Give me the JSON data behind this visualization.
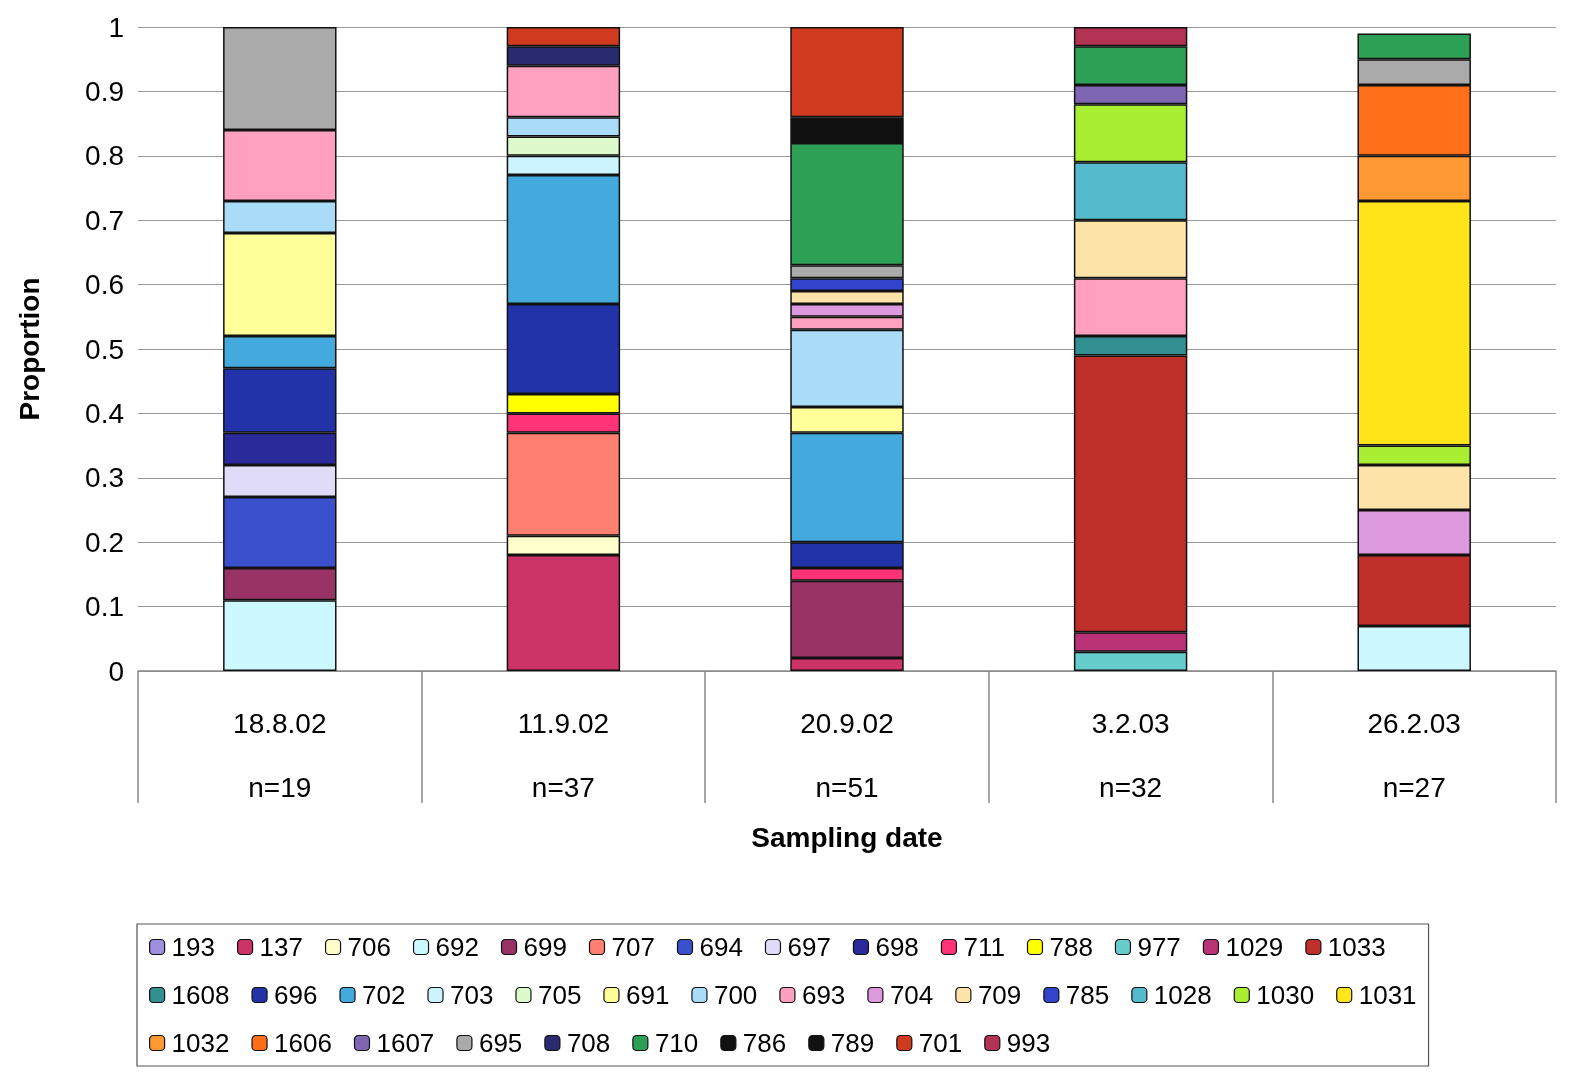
{
  "chart_data": {
    "type": "bar",
    "stacked": true,
    "xlabel": "Sampling date",
    "ylabel": "Proportion",
    "categories": [
      "18.8.02\nn=19",
      "11.9.02\nn=37",
      "20.9.02\nn=51",
      "3.2.03\nn=32",
      "26.2.03\nn=27"
    ],
    "ylim": [
      0,
      1
    ],
    "yticks": [
      0,
      0.1,
      0.2,
      0.3,
      0.4,
      0.5,
      0.6,
      0.7,
      0.8,
      0.9,
      1
    ],
    "grid": "y",
    "legend": "bottom",
    "series": [
      {
        "name": "193",
        "color": "#9f8fdf",
        "values": [
          null,
          null,
          null,
          null,
          null
        ]
      },
      {
        "name": "137",
        "color": "#cc3366",
        "values": [
          null,
          0.18,
          0.02,
          null,
          null
        ]
      },
      {
        "name": "706",
        "color": "#ffffcc",
        "values": [
          null,
          0.03,
          null,
          null,
          null
        ]
      },
      {
        "name": "692",
        "color": "#ccf8ff",
        "values": [
          0.11,
          null,
          null,
          null,
          0.07
        ]
      },
      {
        "name": "699",
        "color": "#993366",
        "values": [
          0.05,
          null,
          0.12,
          null,
          null
        ]
      },
      {
        "name": "707",
        "color": "#ff8070",
        "values": [
          null,
          0.16,
          null,
          null,
          null
        ]
      },
      {
        "name": "694",
        "color": "#3a50cc",
        "values": [
          0.11,
          null,
          null,
          null,
          null
        ]
      },
      {
        "name": "697",
        "color": "#e0dcf8",
        "values": [
          0.05,
          null,
          null,
          null,
          null
        ]
      },
      {
        "name": "698",
        "color": "#2a2a9a",
        "values": [
          0.05,
          null,
          null,
          null,
          null
        ]
      },
      {
        "name": "711",
        "color": "#ff3377",
        "values": [
          null,
          0.03,
          0.02,
          null,
          null
        ]
      },
      {
        "name": "788",
        "color": "#ffff00",
        "values": [
          null,
          0.03,
          null,
          null,
          null
        ]
      },
      {
        "name": "977",
        "color": "#66cccc",
        "values": [
          null,
          null,
          null,
          0.03,
          null
        ]
      },
      {
        "name": "1029",
        "color": "#bb3377",
        "values": [
          null,
          null,
          null,
          0.03,
          null
        ]
      },
      {
        "name": "1033",
        "color": "#c0302a",
        "values": [
          null,
          null,
          null,
          0.43,
          0.11
        ]
      },
      {
        "name": "1608",
        "color": "#339090",
        "values": [
          null,
          null,
          null,
          0.03,
          null
        ]
      },
      {
        "name": "696",
        "color": "#2233aa",
        "values": [
          0.1,
          0.14,
          0.04,
          null,
          null
        ]
      },
      {
        "name": "702",
        "color": "#44aadd",
        "values": [
          0.05,
          0.2,
          0.17,
          null,
          null
        ]
      },
      {
        "name": "703",
        "color": "#ccf4ff",
        "values": [
          null,
          0.03,
          null,
          null,
          null
        ]
      },
      {
        "name": "705",
        "color": "#ddfacc",
        "values": [
          null,
          0.03,
          null,
          null,
          null
        ]
      },
      {
        "name": "691",
        "color": "#ffff99",
        "values": [
          0.16,
          null,
          0.04,
          null,
          null
        ]
      },
      {
        "name": "700",
        "color": "#aadcf8",
        "values": [
          0.05,
          0.03,
          0.12,
          null,
          null
        ]
      },
      {
        "name": "693",
        "color": "#ffa0c0",
        "values": [
          0.11,
          0.08,
          0.02,
          0.09,
          null
        ]
      },
      {
        "name": "704",
        "color": "#dd99dd",
        "values": [
          null,
          null,
          0.02,
          null,
          0.07
        ]
      },
      {
        "name": "709",
        "color": "#ffe4aa",
        "values": [
          null,
          null,
          0.02,
          0.09,
          0.07
        ]
      },
      {
        "name": "785",
        "color": "#3344cc",
        "values": [
          null,
          null,
          0.02,
          null,
          null
        ]
      },
      {
        "name": "1028",
        "color": "#55bbcc",
        "values": [
          null,
          null,
          null,
          0.09,
          null
        ]
      },
      {
        "name": "1030",
        "color": "#aaee33",
        "values": [
          null,
          null,
          null,
          0.09,
          0.03
        ]
      },
      {
        "name": "1031",
        "color": "#ffe51a",
        "values": [
          null,
          null,
          null,
          null,
          0.38
        ]
      },
      {
        "name": "1032",
        "color": "#ff9933",
        "values": [
          null,
          null,
          null,
          null,
          0.07
        ]
      },
      {
        "name": "1606",
        "color": "#ff6f1a",
        "values": [
          null,
          null,
          null,
          null,
          0.11
        ]
      },
      {
        "name": "1607",
        "color": "#7f66b3",
        "values": [
          null,
          null,
          null,
          0.03,
          null
        ]
      },
      {
        "name": "695",
        "color": "#aaaaaa",
        "values": [
          0.16,
          null,
          0.02,
          null,
          0.04
        ]
      },
      {
        "name": "708",
        "color": "#2a2a70",
        "values": [
          null,
          0.03,
          null,
          null,
          null
        ]
      },
      {
        "name": "710",
        "color": "#2ea055",
        "values": [
          null,
          null,
          0.19,
          0.06,
          0.04
        ]
      },
      {
        "name": "786",
        "color": "#111111",
        "values": [
          null,
          null,
          null,
          null,
          null
        ]
      },
      {
        "name": "789",
        "color": "#111111",
        "values": [
          null,
          null,
          0.04,
          null,
          null
        ]
      },
      {
        "name": "701",
        "color": "#d03a1e",
        "values": [
          null,
          0.03,
          0.14,
          null,
          null
        ]
      },
      {
        "name": "993",
        "color": "#b33355",
        "values": [
          null,
          null,
          null,
          0.03,
          null
        ]
      }
    ]
  }
}
